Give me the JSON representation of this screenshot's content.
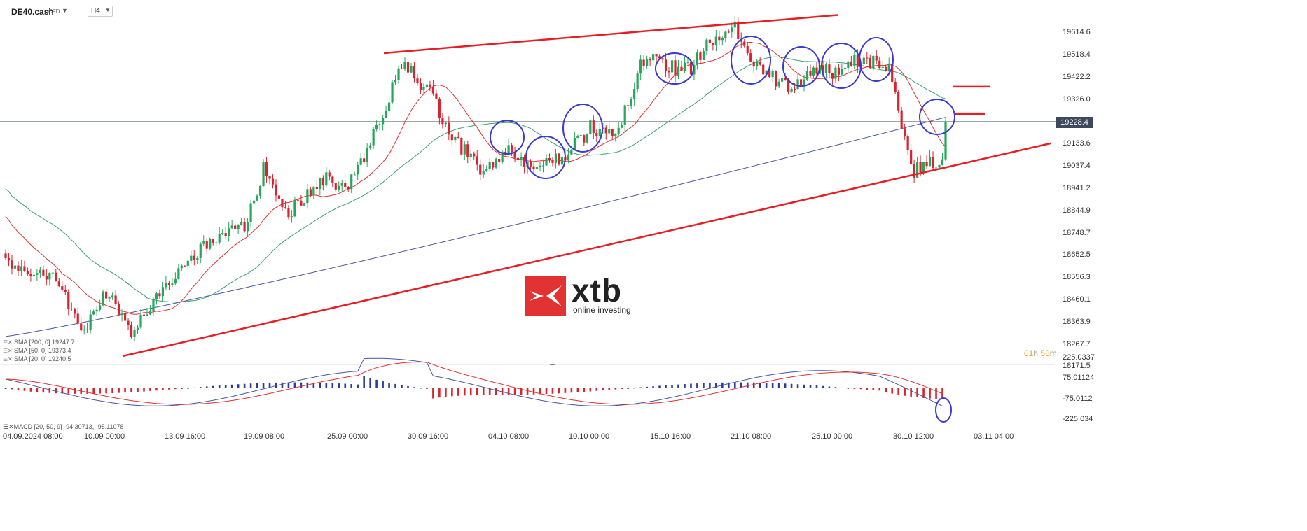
{
  "header": {
    "symbol": "DE40.cash",
    "symbol_type": "CFD",
    "timeframe": "H4"
  },
  "indicators": {
    "sma200": "SMA [200, 0] 19247.7",
    "sma50": "SMA [50, 0] 19373.4",
    "sma20": "SMA [20, 0] 19240.5",
    "macd": "MACD [20, 50, 9] -94.30713, -95.11078"
  },
  "current_price": "19228.4",
  "countdown": {
    "hours": "01",
    "h": "h",
    "minutes": "58",
    "m": "m"
  },
  "logo": {
    "brand": "xtb",
    "tagline": "online investing"
  },
  "colors": {
    "bull": "#26a65b",
    "bear": "#d9232e",
    "sma20": "#e03030",
    "sma50": "#3aa070",
    "sma200": "#4a55a0",
    "trendline": "#e61e25",
    "circle": "#3a3ad0",
    "macd_pos": "#2b3c9e",
    "macd_neg": "#d9232e",
    "price_line": "#3e4a5c"
  },
  "chart_data": {
    "type": "candlestick",
    "instrument": "DE40.cash",
    "timeframe": "H4",
    "price_axis_ticks": [
      "19614.6",
      "19518.4",
      "19422.2",
      "19326.0",
      "19133.6",
      "19037.4",
      "18941.2",
      "18844.9",
      "18748.7",
      "18652.5",
      "18556.3",
      "18460.1",
      "18363.9",
      "18267.7",
      "18171.5"
    ],
    "macd_axis_ticks": [
      "225.0337",
      "75.01124",
      "-75.0112",
      "-225.034"
    ],
    "time_axis_ticks": [
      "04.09.2024 08:00",
      "10.09 00:00",
      "13.09 16:00",
      "19.09 08:00",
      "25.09 00:00",
      "30.09 16:00",
      "04.10 08:00",
      "10.10 00:00",
      "15.10 16:00",
      "21.10 08:00",
      "25.10 00:00",
      "30.10 12:00",
      "03.11 04:00"
    ],
    "last_price": 19228.4,
    "ohlc_close_path": [
      {
        "t": "04.09.2024 08:00",
        "close": 18620
      },
      {
        "t": "06.09 08:00",
        "close": 18560
      },
      {
        "t": "09.09 08:00",
        "close": 18300
      },
      {
        "t": "10.09 00:00",
        "close": 18500
      },
      {
        "t": "11.09 08:00",
        "close": 18330
      },
      {
        "t": "12.09 08:00",
        "close": 18480
      },
      {
        "t": "13.09 16:00",
        "close": 18620
      },
      {
        "t": "16.09 08:00",
        "close": 18690
      },
      {
        "t": "17.09 08:00",
        "close": 18760
      },
      {
        "t": "18.09 08:00",
        "close": 18780
      },
      {
        "t": "19.09 08:00",
        "close": 19040
      },
      {
        "t": "20.09 08:00",
        "close": 18830
      },
      {
        "t": "23.09 08:00",
        "close": 18900
      },
      {
        "t": "24.09 08:00",
        "close": 18980
      },
      {
        "t": "25.09 00:00",
        "close": 18940
      },
      {
        "t": "26.09 08:00",
        "close": 19180
      },
      {
        "t": "27.09 08:00",
        "close": 19480
      },
      {
        "t": "30.09 16:00",
        "close": 19360
      },
      {
        "t": "02.10 08:00",
        "close": 19140
      },
      {
        "t": "03.10 08:00",
        "close": 19020
      },
      {
        "t": "04.10 08:00",
        "close": 19100
      },
      {
        "t": "07.10 08:00",
        "close": 19020
      },
      {
        "t": "08.10 08:00",
        "close": 19070
      },
      {
        "t": "10.10 00:00",
        "close": 19200
      },
      {
        "t": "11.10 08:00",
        "close": 19190
      },
      {
        "t": "14.10 08:00",
        "close": 19500
      },
      {
        "t": "15.10 16:00",
        "close": 19460
      },
      {
        "t": "16.10 08:00",
        "close": 19460
      },
      {
        "t": "17.10 08:00",
        "close": 19580
      },
      {
        "t": "18.10 08:00",
        "close": 19660
      },
      {
        "t": "21.10 08:00",
        "close": 19480
      },
      {
        "t": "22.10 08:00",
        "close": 19420
      },
      {
        "t": "23.10 08:00",
        "close": 19370
      },
      {
        "t": "24.10 08:00",
        "close": 19460
      },
      {
        "t": "25.10 00:00",
        "close": 19440
      },
      {
        "t": "28.10 08:00",
        "close": 19500
      },
      {
        "t": "29.10 08:00",
        "close": 19480
      },
      {
        "t": "30.10 12:00",
        "close": 19020
      },
      {
        "t": "31.10 08:00",
        "close": 19080
      },
      {
        "t": "31.10 16:00",
        "close": 19228.4
      }
    ],
    "sma": [
      {
        "name": "SMA [200, 0]",
        "last": 19247.7
      },
      {
        "name": "SMA [50, 0]",
        "last": 19373.4
      },
      {
        "name": "SMA [20, 0]",
        "last": 19240.5
      }
    ],
    "macd": {
      "params": "[20, 50, 9]",
      "macd": -94.30713,
      "signal": -95.11078
    },
    "annotations": {
      "upper_trendline": [
        {
          "t": "27.09 04:00",
          "price": 19525
        },
        {
          "t": "25.10 08:00",
          "price": 19690
        }
      ],
      "lower_trendline": [
        {
          "t": "10.09 12:00",
          "price": 18215
        },
        {
          "t": "03.11 04:00",
          "price": 19135
        }
      ],
      "resistance_marks": [
        19380,
        19262
      ]
    }
  }
}
